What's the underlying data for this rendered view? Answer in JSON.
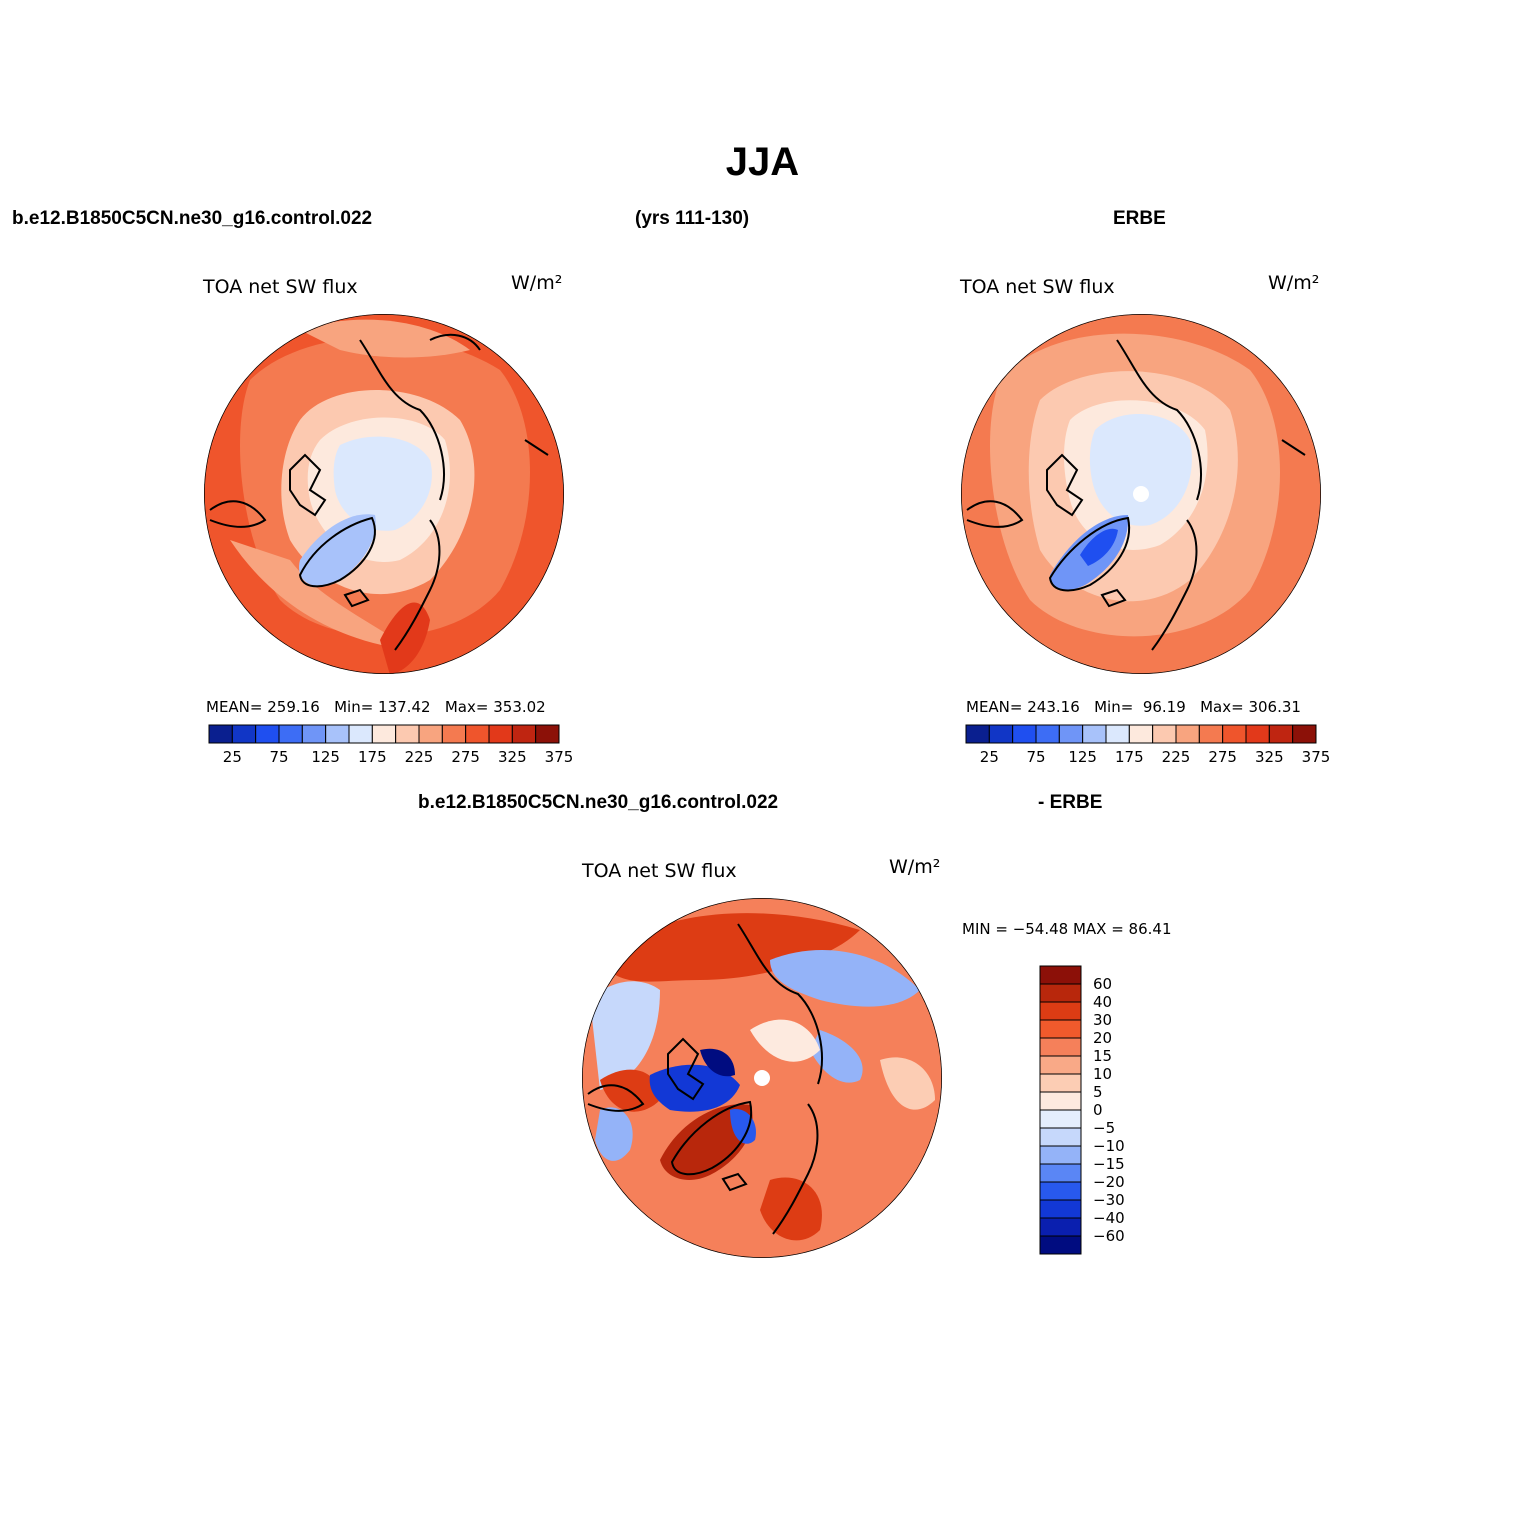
{
  "title": "JJA",
  "top_left_header": "b.e12.B1850C5CN.ne30_g16.control.022",
  "top_center_header": "(yrs 111-130)",
  "top_right_header": "ERBE",
  "bottom_header_left": "b.e12.B1850C5CN.ne30_g16.control.022",
  "bottom_header_right": "- ERBE",
  "colors": {
    "absolute_scale": [
      "#0a1f8f",
      "#1136c6",
      "#1f4ff0",
      "#3d6df5",
      "#6f95f7",
      "#a8c2fa",
      "#dbe8fd",
      "#fde9dd",
      "#fcc9b0",
      "#f8a47f",
      "#f47a50",
      "#ef552c",
      "#e2391a",
      "#bf2511",
      "#8c1108"
    ],
    "difference_scale": [
      "#000c80",
      "#0a1faf",
      "#1238d6",
      "#2859ee",
      "#5a86f5",
      "#94b3f8",
      "#c6d8fb",
      "#e4eefd",
      "#fdeadf",
      "#fccdb4",
      "#f9a987",
      "#f5805a",
      "#f05a2c",
      "#dd3c14",
      "#b8270c",
      "#8c1008"
    ],
    "land_outline": "#000000"
  },
  "panels": [
    {
      "id": "model",
      "title": "TOA net SW flux",
      "units": "W/m²",
      "stats": {
        "mean_label": "MEAN=",
        "mean": "259.16",
        "min_label": "Min=",
        "min": "137.42",
        "max_label": "Max=",
        "max": "353.02"
      },
      "colorbar_labels": [
        "25",
        "75",
        "125",
        "175",
        "225",
        "275",
        "325",
        "375"
      ]
    },
    {
      "id": "obs",
      "title": "TOA net SW flux",
      "units": "W/m²",
      "stats": {
        "mean_label": "MEAN=",
        "mean": "243.16",
        "min_label": "Min=",
        "min": "96.19",
        "max_label": "Max=",
        "max": "306.31"
      },
      "colorbar_labels": [
        "25",
        "75",
        "125",
        "175",
        "225",
        "275",
        "325",
        "375"
      ]
    },
    {
      "id": "difference",
      "title": "TOA net SW flux",
      "units": "W/m²",
      "stats_text": "MIN = −54.48 MAX =  86.41",
      "colorbar_labels": [
        "60",
        "40",
        "30",
        "20",
        "15",
        "10",
        "5",
        "0",
        "−5",
        "−10",
        "−15",
        "−20",
        "−30",
        "−40",
        "−60"
      ]
    }
  ]
}
